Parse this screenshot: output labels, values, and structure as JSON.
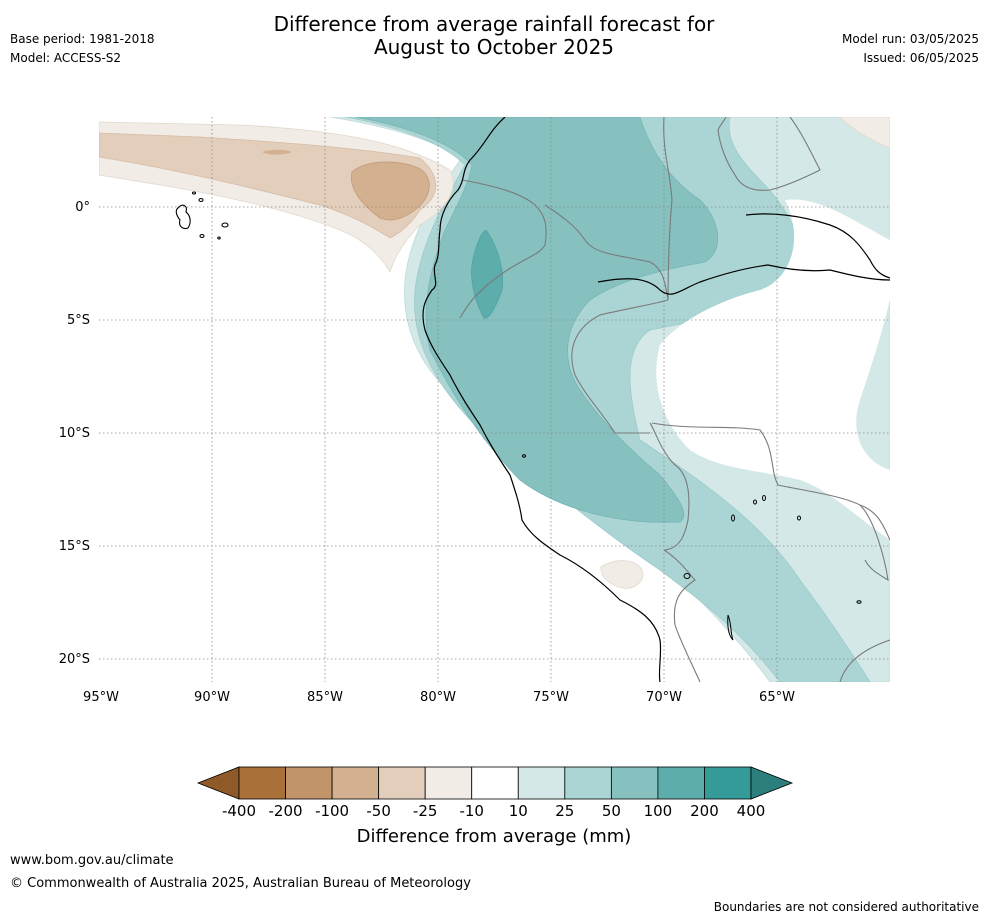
{
  "header": {
    "title_line1": "Difference from average rainfall forecast for",
    "title_line2": "August to October 2025",
    "base_period": "Base period: 1981-2018",
    "model": "Model: ACCESS-S2",
    "model_run": "Model run: 03/05/2025",
    "issued": "Issued: 06/05/2025"
  },
  "map": {
    "lat_labels": [
      "0°",
      "5°S",
      "10°S",
      "15°S",
      "20°S"
    ],
    "lon_labels": [
      "95°W",
      "90°W",
      "85°W",
      "80°W",
      "75°W",
      "70°W",
      "65°W"
    ]
  },
  "colorbar": {
    "title": "Difference from average (mm)",
    "labels": [
      "-400",
      "-200",
      "-100",
      "-50",
      "-25",
      "-10",
      "10",
      "25",
      "50",
      "100",
      "200",
      "400"
    ],
    "colors": [
      "#a9703a",
      "#c1946a",
      "#d3b08f",
      "#e3cebb",
      "#f1ece6",
      "#ffffff",
      "#d3e8e7",
      "#abd5d4",
      "#86c1c0",
      "#5eadad",
      "#359b98"
    ],
    "under_color": "#8f5a28",
    "over_color": "#2c7f7c"
  },
  "footer": {
    "url": "www.bom.gov.au/climate",
    "copyright": "© Commonwealth of Australia 2025, Australian Bureau of Meteorology",
    "note": "Boundaries are not considered authoritative"
  }
}
